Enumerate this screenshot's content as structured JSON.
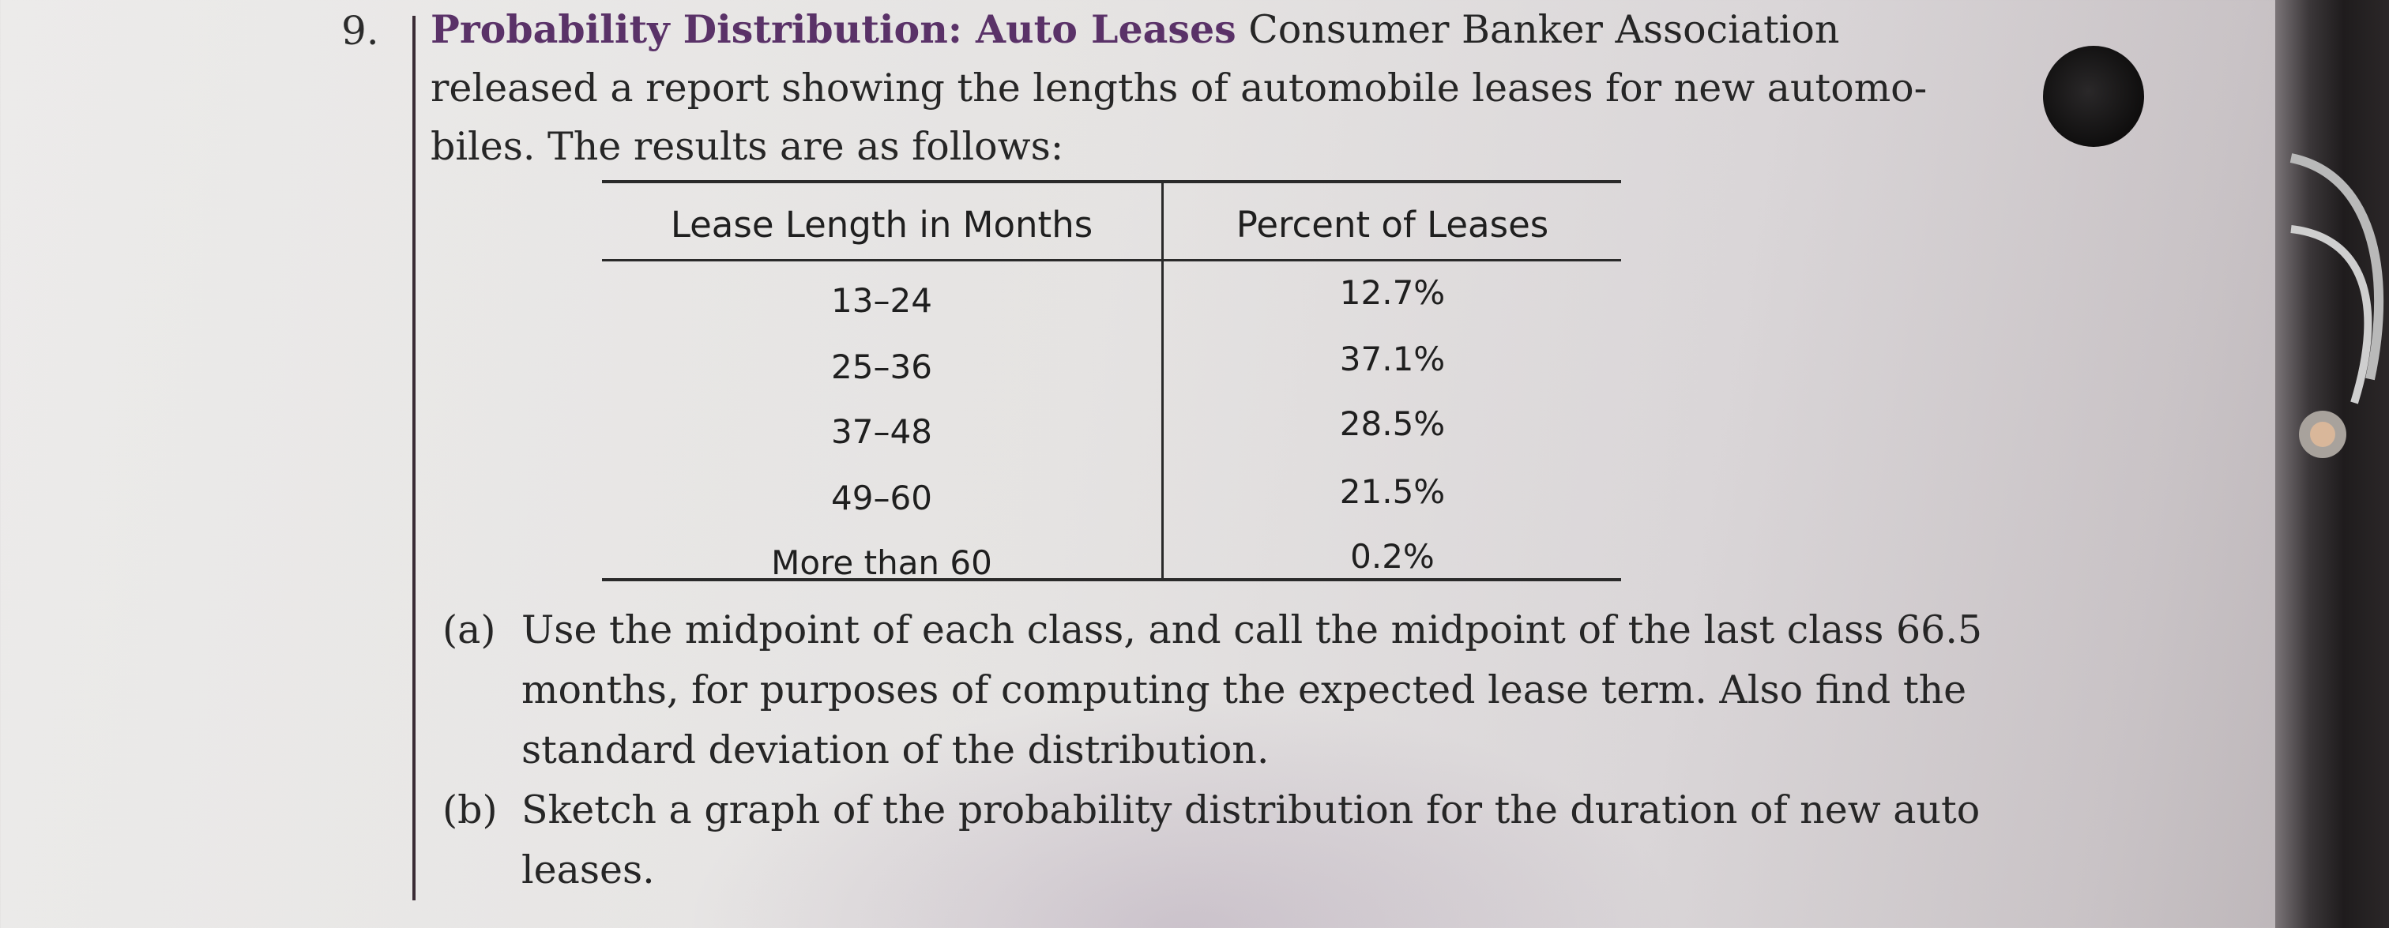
{
  "problem": {
    "number": "9.",
    "title": "Probability Distribution: Auto Leases",
    "intro_line1_rest": "Consumer Banker Association",
    "intro_line2": "released a report showing the lengths of automobile leases for new automo-",
    "intro_line3": "biles. The results are as follows:"
  },
  "table": {
    "headers": [
      "Lease Length in Months",
      "Percent of Leases"
    ],
    "rows": [
      {
        "length": "13–24",
        "percent": "12.7%"
      },
      {
        "length": "25–36",
        "percent": "37.1%"
      },
      {
        "length": "37–48",
        "percent": "28.5%"
      },
      {
        "length": "49–60",
        "percent": "21.5%"
      },
      {
        "length": "More than 60",
        "percent": "0.2%"
      }
    ]
  },
  "parts": [
    {
      "label": "(a)",
      "text": "Use the midpoint of each class, and call the midpoint of the last class 66.5 months, for purposes of computing the expected lease term. Also find the standard deviation of the distribution."
    },
    {
      "label": "(b)",
      "text": "Sketch a graph of the probability distribution for the duration of new auto leases."
    }
  ]
}
